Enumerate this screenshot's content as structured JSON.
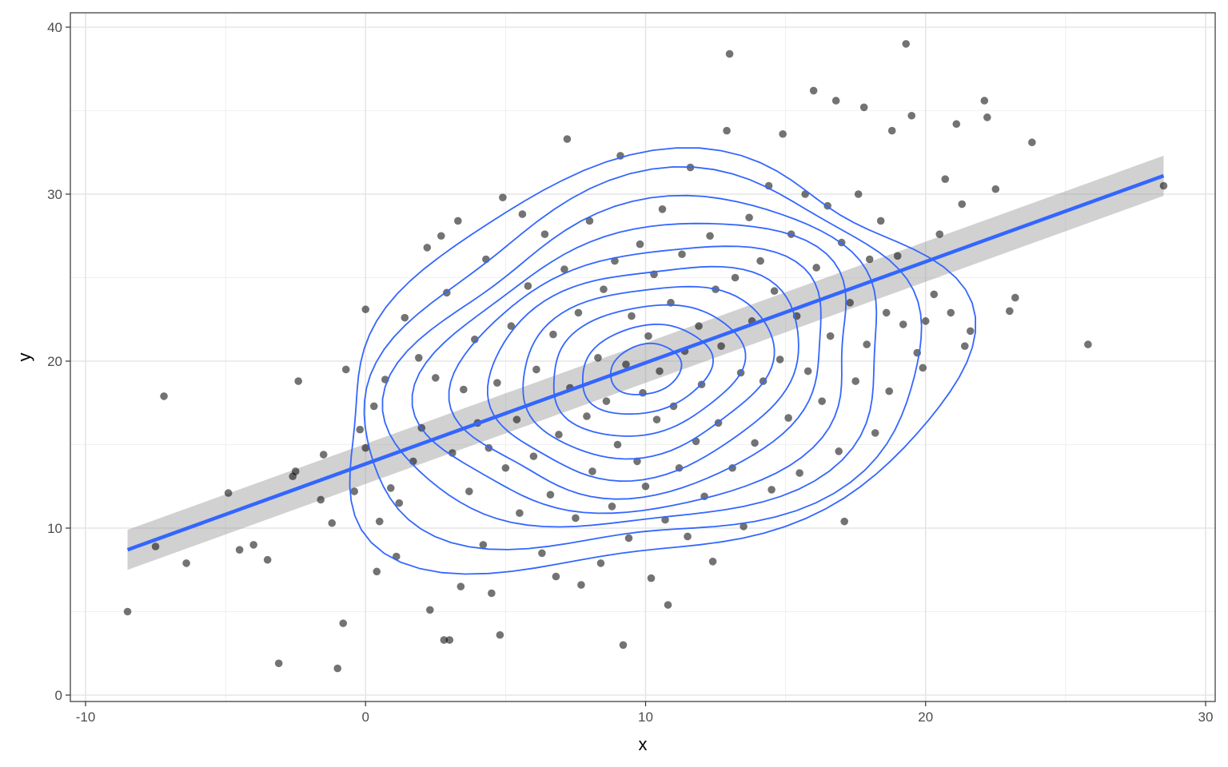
{
  "chart_data": {
    "type": "scatter",
    "title": "",
    "xlabel": "x",
    "ylabel": "y",
    "xlim": [
      -10,
      30
    ],
    "ylim": [
      0,
      40
    ],
    "x_ticks": [
      -10,
      0,
      10,
      20,
      30
    ],
    "y_ticks": [
      0,
      10,
      20,
      30,
      40
    ],
    "x_tick_labels": [
      "-10",
      "0",
      "10",
      "20",
      "30"
    ],
    "y_tick_labels": [
      "0",
      "10",
      "20",
      "30",
      "40"
    ],
    "grid": true,
    "legend": "none",
    "series": [
      {
        "kind": "points",
        "color": "#000000",
        "points": [
          [
            -8.5,
            5.0
          ],
          [
            -7.5,
            8.9
          ],
          [
            -7.2,
            17.9
          ],
          [
            -6.4,
            7.9
          ],
          [
            -4.9,
            12.1
          ],
          [
            -4.5,
            8.7
          ],
          [
            -4.0,
            9.0
          ],
          [
            -3.5,
            8.1
          ],
          [
            -3.1,
            1.9
          ],
          [
            -2.6,
            13.1
          ],
          [
            -2.5,
            13.4
          ],
          [
            -2.4,
            18.8
          ],
          [
            -1.6,
            11.7
          ],
          [
            -1.5,
            14.4
          ],
          [
            -1.2,
            10.3
          ],
          [
            -1.0,
            1.6
          ],
          [
            -0.8,
            4.3
          ],
          [
            -0.7,
            19.5
          ],
          [
            -0.4,
            12.2
          ],
          [
            -0.2,
            15.9
          ],
          [
            0.0,
            14.8
          ],
          [
            0.0,
            23.1
          ],
          [
            0.3,
            17.3
          ],
          [
            0.4,
            7.4
          ],
          [
            0.5,
            10.4
          ],
          [
            0.7,
            18.9
          ],
          [
            0.9,
            12.4
          ],
          [
            1.1,
            8.3
          ],
          [
            1.2,
            11.5
          ],
          [
            1.4,
            22.6
          ],
          [
            1.7,
            14.0
          ],
          [
            1.9,
            20.2
          ],
          [
            2.0,
            16.0
          ],
          [
            2.2,
            26.8
          ],
          [
            2.3,
            5.1
          ],
          [
            2.5,
            19.0
          ],
          [
            2.7,
            27.5
          ],
          [
            2.8,
            3.3
          ],
          [
            2.9,
            24.1
          ],
          [
            3.0,
            3.3
          ],
          [
            3.1,
            14.5
          ],
          [
            3.3,
            28.4
          ],
          [
            3.4,
            6.5
          ],
          [
            3.5,
            18.3
          ],
          [
            3.7,
            12.2
          ],
          [
            3.9,
            21.3
          ],
          [
            4.0,
            16.3
          ],
          [
            4.2,
            9.0
          ],
          [
            4.3,
            26.1
          ],
          [
            4.4,
            14.8
          ],
          [
            4.5,
            6.1
          ],
          [
            4.7,
            18.7
          ],
          [
            4.8,
            3.6
          ],
          [
            4.9,
            29.8
          ],
          [
            5.0,
            13.6
          ],
          [
            5.2,
            22.1
          ],
          [
            5.4,
            16.5
          ],
          [
            5.5,
            10.9
          ],
          [
            5.6,
            28.8
          ],
          [
            5.8,
            24.5
          ],
          [
            6.0,
            14.3
          ],
          [
            6.1,
            19.5
          ],
          [
            6.3,
            8.5
          ],
          [
            6.4,
            27.6
          ],
          [
            6.6,
            12.0
          ],
          [
            6.7,
            21.6
          ],
          [
            6.8,
            7.1
          ],
          [
            6.9,
            15.6
          ],
          [
            7.1,
            25.5
          ],
          [
            7.2,
            33.3
          ],
          [
            7.3,
            18.4
          ],
          [
            7.5,
            10.6
          ],
          [
            7.6,
            22.9
          ],
          [
            7.7,
            6.6
          ],
          [
            7.9,
            16.7
          ],
          [
            8.0,
            28.4
          ],
          [
            8.1,
            13.4
          ],
          [
            8.3,
            20.2
          ],
          [
            8.4,
            7.9
          ],
          [
            8.5,
            24.3
          ],
          [
            8.6,
            17.6
          ],
          [
            8.8,
            11.3
          ],
          [
            8.9,
            26.0
          ],
          [
            9.0,
            15.0
          ],
          [
            9.1,
            32.3
          ],
          [
            9.2,
            3.0
          ],
          [
            9.3,
            19.8
          ],
          [
            9.4,
            9.4
          ],
          [
            9.5,
            22.7
          ],
          [
            9.7,
            14.0
          ],
          [
            9.8,
            27.0
          ],
          [
            9.9,
            18.1
          ],
          [
            10.0,
            12.5
          ],
          [
            10.1,
            21.5
          ],
          [
            10.2,
            7.0
          ],
          [
            10.3,
            25.2
          ],
          [
            10.4,
            16.5
          ],
          [
            10.5,
            19.4
          ],
          [
            10.6,
            29.1
          ],
          [
            10.7,
            10.5
          ],
          [
            10.8,
            5.4
          ],
          [
            10.9,
            23.5
          ],
          [
            11.0,
            17.3
          ],
          [
            11.2,
            13.6
          ],
          [
            11.3,
            26.4
          ],
          [
            11.4,
            20.6
          ],
          [
            11.5,
            9.5
          ],
          [
            11.6,
            31.6
          ],
          [
            11.8,
            15.2
          ],
          [
            11.9,
            22.1
          ],
          [
            12.0,
            18.6
          ],
          [
            12.1,
            11.9
          ],
          [
            12.3,
            27.5
          ],
          [
            12.4,
            8.0
          ],
          [
            12.5,
            24.3
          ],
          [
            12.6,
            16.3
          ],
          [
            12.7,
            20.9
          ],
          [
            12.9,
            33.8
          ],
          [
            13.0,
            38.4
          ],
          [
            13.1,
            13.6
          ],
          [
            13.2,
            25.0
          ],
          [
            13.4,
            19.3
          ],
          [
            13.5,
            10.1
          ],
          [
            13.7,
            28.6
          ],
          [
            13.8,
            22.4
          ],
          [
            13.9,
            15.1
          ],
          [
            14.1,
            26.0
          ],
          [
            14.2,
            18.8
          ],
          [
            14.4,
            30.5
          ],
          [
            14.5,
            12.3
          ],
          [
            14.6,
            24.2
          ],
          [
            14.8,
            20.1
          ],
          [
            14.9,
            33.6
          ],
          [
            15.1,
            16.6
          ],
          [
            15.2,
            27.6
          ],
          [
            15.4,
            22.7
          ],
          [
            15.5,
            13.3
          ],
          [
            15.7,
            30.0
          ],
          [
            15.8,
            19.4
          ],
          [
            16.0,
            36.2
          ],
          [
            16.1,
            25.6
          ],
          [
            16.3,
            17.6
          ],
          [
            16.5,
            29.3
          ],
          [
            16.6,
            21.5
          ],
          [
            16.8,
            35.6
          ],
          [
            16.9,
            14.6
          ],
          [
            17.0,
            27.1
          ],
          [
            17.1,
            10.4
          ],
          [
            17.3,
            23.5
          ],
          [
            17.5,
            18.8
          ],
          [
            17.6,
            30.0
          ],
          [
            17.8,
            35.2
          ],
          [
            17.9,
            21.0
          ],
          [
            18.0,
            26.1
          ],
          [
            18.2,
            15.7
          ],
          [
            18.4,
            28.4
          ],
          [
            18.6,
            22.9
          ],
          [
            18.7,
            18.2
          ],
          [
            18.8,
            33.8
          ],
          [
            19.0,
            26.3
          ],
          [
            19.2,
            22.2
          ],
          [
            19.3,
            39.0
          ],
          [
            19.5,
            34.7
          ],
          [
            19.7,
            20.5
          ],
          [
            19.9,
            19.6
          ],
          [
            20.0,
            22.4
          ],
          [
            20.3,
            24.0
          ],
          [
            20.5,
            27.6
          ],
          [
            20.7,
            30.9
          ],
          [
            20.9,
            22.9
          ],
          [
            21.1,
            34.2
          ],
          [
            21.3,
            29.4
          ],
          [
            21.4,
            20.9
          ],
          [
            21.6,
            21.8
          ],
          [
            22.1,
            35.6
          ],
          [
            22.2,
            34.6
          ],
          [
            22.5,
            30.3
          ],
          [
            23.0,
            23.0
          ],
          [
            23.2,
            23.8
          ],
          [
            23.8,
            33.1
          ],
          [
            25.8,
            21.0
          ],
          [
            28.5,
            30.5
          ]
        ]
      },
      {
        "kind": "regression",
        "color": "#3366ff",
        "x": [
          -8.5,
          28.5
        ],
        "y": [
          8.7,
          31.1
        ],
        "ci_lower": [
          7.5,
          29.9
        ],
        "ci_upper": [
          9.9,
          32.3
        ],
        "ci_color": "#999999"
      },
      {
        "kind": "density2d",
        "color": "#3366ff",
        "center": [
          10.0,
          19.5
        ]
      }
    ]
  }
}
